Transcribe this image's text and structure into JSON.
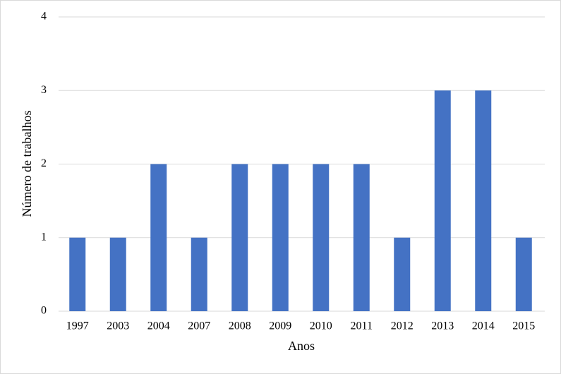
{
  "chart_data": {
    "type": "bar",
    "categories": [
      "1997",
      "2003",
      "2004",
      "2007",
      "2008",
      "2009",
      "2010",
      "2011",
      "2012",
      "2013",
      "2014",
      "2015"
    ],
    "values": [
      1,
      1,
      2,
      1,
      2,
      2,
      2,
      2,
      1,
      3,
      3,
      1
    ],
    "color": "#4472c4",
    "x_label": "Anos",
    "y_label": "Número de trabalhos",
    "ylim": [
      0,
      4
    ],
    "yticks": [
      0,
      1,
      2,
      3,
      4
    ],
    "grid": true
  }
}
